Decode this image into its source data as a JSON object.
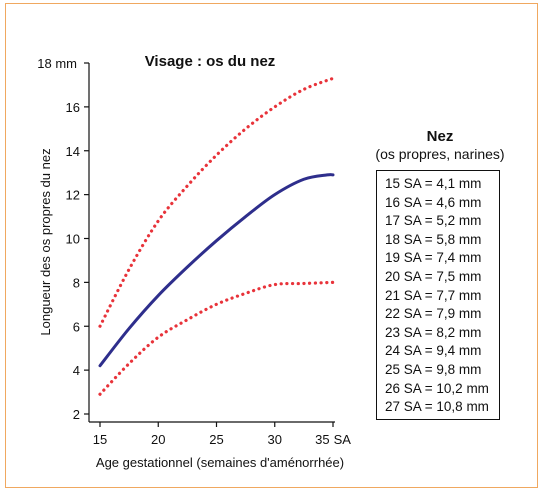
{
  "chart_data": {
    "type": "line",
    "title": "Visage : os du nez",
    "xlabel": "Age gestationnel (semaines d'aménorrhée)",
    "ylabel": "Longueur des os propres du nez",
    "xlim": [
      15,
      35
    ],
    "ylim": [
      2,
      18
    ],
    "x_ticks": [
      "15",
      "20",
      "25",
      "30",
      "35 SA"
    ],
    "y_ticks": [
      "2",
      "4",
      "6",
      "8",
      "10",
      "12",
      "14",
      "16",
      "18 mm"
    ],
    "x_tick_values": [
      15,
      20,
      25,
      30,
      35
    ],
    "y_tick_values": [
      2,
      4,
      6,
      8,
      10,
      12,
      14,
      16,
      18
    ],
    "series": [
      {
        "style": "dotted",
        "color": "#e8333a",
        "x": [
          15,
          17.5,
          20,
          22.5,
          25,
          27.5,
          30,
          32.5,
          35
        ],
        "y": [
          6.0,
          8.6,
          10.8,
          12.4,
          13.8,
          15.0,
          16.0,
          16.8,
          17.3
        ]
      },
      {
        "style": "solid",
        "color": "#2e2e8c",
        "x": [
          15,
          17.5,
          20,
          22.5,
          25,
          27.5,
          30,
          32.5,
          34.5,
          35
        ],
        "y": [
          4.2,
          5.9,
          7.4,
          8.7,
          9.9,
          11.0,
          12.0,
          12.7,
          12.9,
          12.9
        ]
      },
      {
        "style": "dotted",
        "color": "#e8333a",
        "x": [
          15,
          17.5,
          20,
          22.5,
          25,
          27.5,
          30,
          32.5,
          35
        ],
        "y": [
          2.9,
          4.3,
          5.5,
          6.3,
          7.0,
          7.5,
          7.9,
          7.95,
          8.0
        ]
      }
    ]
  },
  "side_table": {
    "title": "Nez",
    "subtitle": "(os propres, narines)",
    "rows": [
      "15 SA = 4,1 mm",
      "16 SA = 4,6 mm",
      "17 SA = 5,2 mm",
      "18 SA = 5,8 mm",
      "19 SA = 7,4 mm",
      "20 SA = 7,5 mm",
      "21 SA = 7,7 mm",
      "22 SA = 7,9 mm",
      "23 SA = 8,2 mm",
      "24 SA = 9,4 mm",
      "25 SA = 9,8 mm",
      "26 SA = 10,2 mm",
      "27 SA = 10,8 mm"
    ]
  }
}
